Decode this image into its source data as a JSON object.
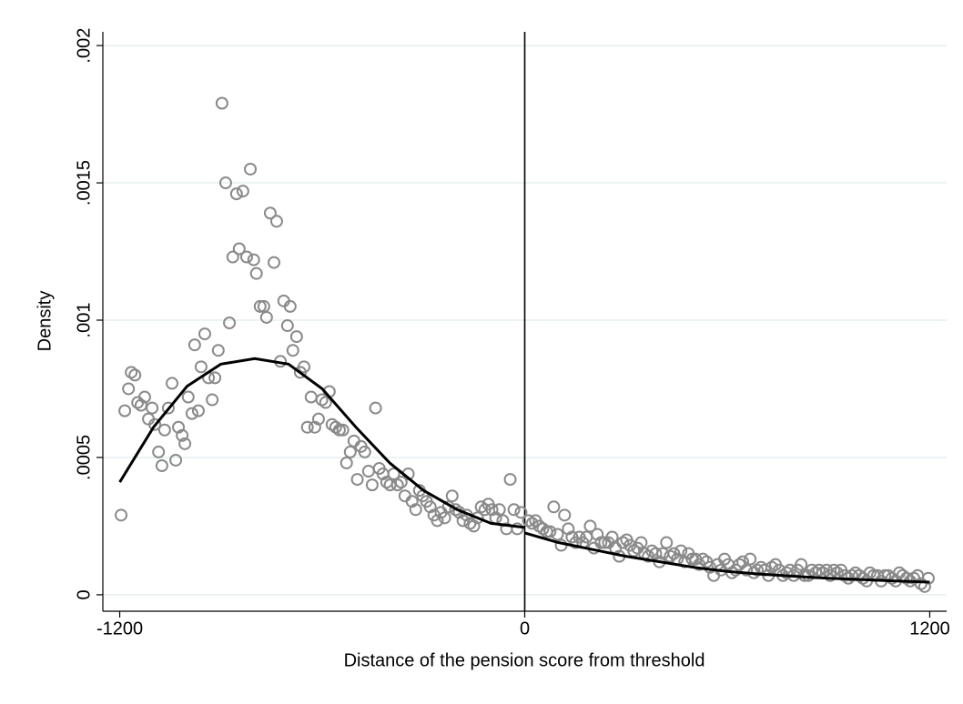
{
  "chart_data": {
    "type": "scatter",
    "xlabel": "Distance of the pension score from threshold",
    "ylabel": "Density",
    "xlim": [
      -1250,
      1250
    ],
    "ylim": [
      -6e-05,
      0.00205
    ],
    "xticks": [
      -1200,
      0,
      1200
    ],
    "yticks": [
      0,
      {
        "value": 0.0005,
        "label": ".0005"
      },
      {
        "value": 0.001,
        "label": ".001"
      },
      {
        "value": 0.0015,
        "label": ".0015"
      },
      {
        "value": 0.002,
        "label": ".002"
      }
    ],
    "grid": true,
    "vline": 0,
    "series": [
      {
        "style": "markers",
        "color": "#8a8a8a",
        "x": [
          -1196,
          -1185,
          -1174,
          -1166,
          -1155,
          -1147,
          -1137,
          -1126,
          -1115,
          -1104,
          -1096,
          -1085,
          -1075,
          -1067,
          -1056,
          -1045,
          -1034,
          -1026,
          -1015,
          -1007,
          -997,
          -986,
          -978,
          -967,
          -959,
          -948,
          -937,
          -926,
          -918,
          -908,
          -897,
          -886,
          -875,
          -865,
          -854,
          -846,
          -835,
          -824,
          -813,
          -803,
          -795,
          -784,
          -773,
          -765,
          -754,
          -743,
          -735,
          -724,
          -714,
          -703,
          -695,
          -687,
          -676,
          -665,
          -654,
          -644,
          -633,
          -622,
          -611,
          -601,
          -590,
          -579,
          -571,
          -560,
          -549,
          -539,
          -528,
          -517,
          -506,
          -496,
          -485,
          -474,
          -463,
          -452,
          -442,
          -431,
          -420,
          -409,
          -399,
          -388,
          -377,
          -366,
          -355,
          -345,
          -334,
          -323,
          -312,
          -302,
          -291,
          -280,
          -269,
          -259,
          -248,
          -237,
          -226,
          -215,
          -205,
          -194,
          -183,
          -172,
          -162,
          -151,
          -140,
          -129,
          -118,
          -108,
          -97,
          -86,
          -75,
          -65,
          -54,
          -43,
          -32,
          -22,
          -11,
          11,
          22,
          32,
          43,
          54,
          65,
          75,
          86,
          97,
          108,
          118,
          129,
          140,
          151,
          162,
          172,
          183,
          194,
          205,
          215,
          226,
          237,
          248,
          259,
          269,
          280,
          291,
          302,
          312,
          323,
          334,
          345,
          355,
          366,
          377,
          388,
          399,
          409,
          420,
          431,
          442,
          452,
          463,
          474,
          485,
          496,
          506,
          517,
          528,
          539,
          549,
          560,
          571,
          582,
          592,
          603,
          614,
          625,
          636,
          646,
          657,
          668,
          679,
          689,
          700,
          711,
          722,
          732,
          743,
          754,
          765,
          776,
          786,
          797,
          808,
          819,
          829,
          840,
          851,
          862,
          872,
          883,
          894,
          905,
          916,
          926,
          937,
          948,
          959,
          969,
          980,
          991,
          1002,
          1013,
          1023,
          1034,
          1045,
          1056,
          1067,
          1077,
          1088,
          1099,
          1110,
          1120,
          1131,
          1142,
          1153,
          1164,
          1174,
          1185,
          1196
        ],
        "values": [
          0.00029,
          0.00067,
          0.00075,
          0.00081,
          0.0008,
          0.0007,
          0.00069,
          0.00072,
          0.00064,
          0.00068,
          0.00062,
          0.00052,
          0.00047,
          0.0006,
          0.00068,
          0.00077,
          0.00049,
          0.00061,
          0.00058,
          0.00055,
          0.00072,
          0.00066,
          0.00091,
          0.00067,
          0.00083,
          0.00095,
          0.00079,
          0.00071,
          0.00079,
          0.00089,
          0.00179,
          0.0015,
          0.00099,
          0.00123,
          0.00146,
          0.00126,
          0.00147,
          0.00123,
          0.00155,
          0.00122,
          0.00117,
          0.00105,
          0.00105,
          0.00101,
          0.00139,
          0.00121,
          0.00136,
          0.00085,
          0.00107,
          0.00098,
          0.00105,
          0.00089,
          0.00094,
          0.00081,
          0.00083,
          0.00061,
          0.00072,
          0.00061,
          0.00064,
          0.00071,
          0.0007,
          0.00074,
          0.00062,
          0.00061,
          0.0006,
          0.0006,
          0.00048,
          0.00052,
          0.00056,
          0.00042,
          0.00054,
          0.00052,
          0.00045,
          0.0004,
          0.00068,
          0.00046,
          0.00044,
          0.00041,
          0.0004,
          0.00044,
          0.0004,
          0.00041,
          0.00036,
          0.00044,
          0.00034,
          0.00031,
          0.00038,
          0.00036,
          0.00034,
          0.00032,
          0.00029,
          0.00027,
          0.0003,
          0.00028,
          0.00032,
          0.00036,
          0.00031,
          0.0003,
          0.00027,
          0.00029,
          0.00026,
          0.00025,
          0.00028,
          0.00032,
          0.00031,
          0.00033,
          0.00031,
          0.00028,
          0.00031,
          0.00027,
          0.00024,
          0.00042,
          0.00031,
          0.00024,
          0.0003,
          0.00027,
          0.00026,
          0.00027,
          0.00025,
          0.00024,
          0.00023,
          0.00023,
          0.00032,
          0.00022,
          0.00018,
          0.00029,
          0.00024,
          0.00021,
          0.00019,
          0.00021,
          0.00019,
          0.00021,
          0.00025,
          0.00017,
          0.00022,
          0.00019,
          0.00019,
          0.00019,
          0.00021,
          0.00017,
          0.00014,
          0.00019,
          0.0002,
          0.00018,
          0.00016,
          0.00017,
          0.00019,
          0.00015,
          0.00014,
          0.00016,
          0.00015,
          0.00012,
          0.00015,
          0.00019,
          0.00014,
          0.00015,
          0.00013,
          0.00016,
          0.00012,
          0.00015,
          0.00013,
          0.00013,
          0.00011,
          0.00013,
          0.00012,
          0.0001,
          7e-05,
          0.00011,
          9e-05,
          0.00013,
          0.00011,
          8e-05,
          9e-05,
          0.00011,
          0.00012,
          9e-05,
          0.00013,
          8e-05,
          9e-05,
          0.0001,
          9e-05,
          7e-05,
          0.0001,
          0.00011,
          9e-05,
          7e-05,
          8e-05,
          9e-05,
          7e-05,
          9e-05,
          0.00011,
          7e-05,
          7e-05,
          9e-05,
          8e-05,
          9e-05,
          8e-05,
          9e-05,
          7e-05,
          9e-05,
          8e-05,
          9e-05,
          7e-05,
          6e-05,
          7e-05,
          8e-05,
          7e-05,
          6e-05,
          5e-05,
          8e-05,
          7e-05,
          7e-05,
          5e-05,
          7e-05,
          7e-05,
          6e-05,
          5e-05,
          8e-05,
          7e-05,
          6e-05,
          5e-05,
          6e-05,
          7e-05,
          4e-05,
          3e-05,
          6e-05
        ]
      },
      {
        "style": "line",
        "color": "#000000",
        "x": [
          -1200,
          -1100,
          -1000,
          -900,
          -800,
          -700,
          -600,
          -500,
          -400,
          -300,
          -200,
          -100,
          0
        ],
        "values": [
          0.00041,
          0.00061,
          0.00076,
          0.00084,
          0.00086,
          0.00084,
          0.00075,
          0.00061,
          0.00048,
          0.00038,
          0.00031,
          0.00026,
          0.000245
        ]
      },
      {
        "style": "line",
        "color": "#000000",
        "x": [
          0,
          100,
          200,
          300,
          400,
          500,
          600,
          700,
          800,
          900,
          1000,
          1100,
          1200
        ],
        "values": [
          0.000225,
          0.00019,
          0.000165,
          0.00014,
          0.00012,
          0.0001,
          8.5e-05,
          7.5e-05,
          6.7e-05,
          6e-05,
          5.5e-05,
          5e-05,
          4.6e-05
        ]
      }
    ]
  }
}
